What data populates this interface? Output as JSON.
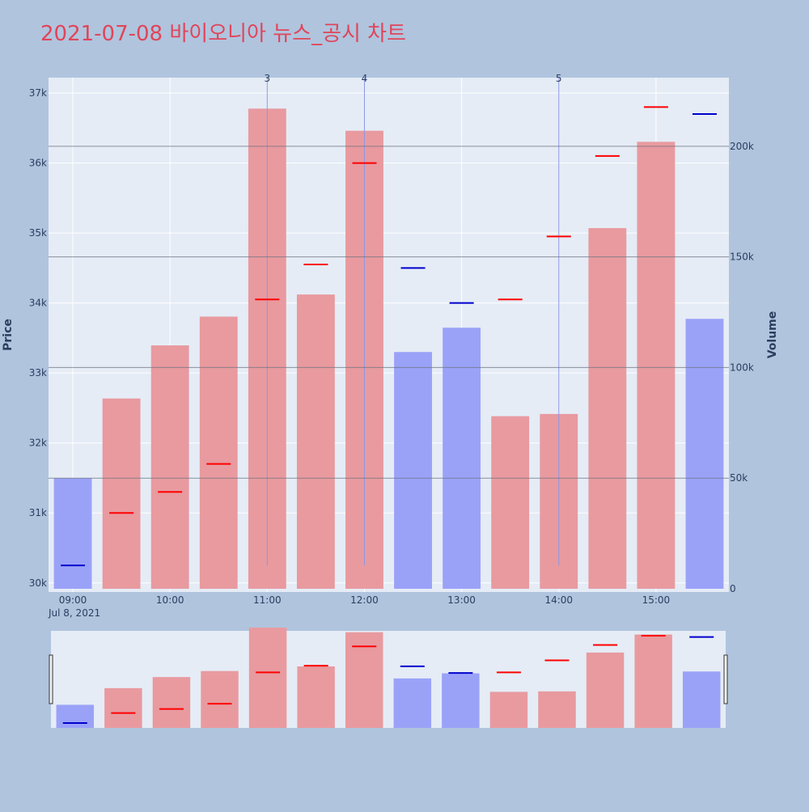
{
  "chart_data": {
    "type": "bar",
    "title": "2021-07-08 바이오니아 뉴스_공시 차트",
    "colors": {
      "title": "#e0455a",
      "plot_bg": "#e5ecf6",
      "paper_bg": "#b0c4de",
      "up_bar": "#e89a9f",
      "down_bar": "#9aa2f8",
      "up_tick": "#ff0000",
      "down_tick": "#0000cd",
      "event_line": "#8a96e6"
    },
    "x": [
      "09:00",
      "09:30",
      "10:00",
      "10:30",
      "11:00",
      "11:30",
      "12:00",
      "12:30",
      "13:00",
      "13:30",
      "14:00",
      "14:30",
      "15:00",
      "15:30"
    ],
    "x_tick_labels": [
      "09:00",
      "10:00",
      "11:00",
      "12:00",
      "13:00",
      "14:00",
      "15:00"
    ],
    "x_date_label": "Jul 8, 2021",
    "series": [
      {
        "axis": "y2",
        "values": [
          50000,
          86000,
          110000,
          123000,
          217000,
          133000,
          207000,
          107000,
          118000,
          78000,
          79000,
          163000,
          202000,
          122000
        ],
        "directions": [
          "down",
          "up",
          "up",
          "up",
          "up",
          "up",
          "up",
          "down",
          "down",
          "up",
          "up",
          "up",
          "up",
          "down"
        ]
      },
      {
        "axis": "y",
        "values": [
          30250,
          31000,
          31300,
          31700,
          34050,
          34550,
          36000,
          34500,
          34000,
          34050,
          34950,
          36100,
          36800,
          36700
        ],
        "directions": [
          "down",
          "up",
          "up",
          "up",
          "up",
          "up",
          "up",
          "down",
          "down",
          "up",
          "up",
          "up",
          "up",
          "down"
        ]
      }
    ],
    "ylabel": "Price",
    "y_ticks": [
      30000,
      31000,
      32000,
      33000,
      34000,
      35000,
      36000,
      37000
    ],
    "y_tick_labels": [
      "30k",
      "31k",
      "32k",
      "33k",
      "34k",
      "35k",
      "36k",
      "37k"
    ],
    "ylim": [
      29870,
      37220
    ],
    "y2label": "Volume",
    "y2_ticks": [
      0,
      50000,
      100000,
      150000,
      200000
    ],
    "y2_tick_labels": [
      "0",
      "50k",
      "100k",
      "150k",
      "200k"
    ],
    "y2lim": [
      0,
      231000
    ],
    "events": [
      {
        "label": "3",
        "x": "11:00"
      },
      {
        "label": "4",
        "x": "12:00"
      },
      {
        "label": "5",
        "x": "14:00"
      }
    ],
    "event_line_bottom": 30250,
    "rangeslider_visible": true
  }
}
